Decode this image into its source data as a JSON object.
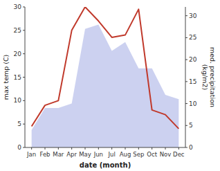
{
  "chart_data": {
    "type": "line",
    "categories": [
      "Jan",
      "Feb",
      "Mar",
      "Apr",
      "May",
      "Jun",
      "Jul",
      "Aug",
      "Sep",
      "Oct",
      "Nov",
      "Dec"
    ],
    "xlabel": "date (month)",
    "ylabel": "max temp (C)",
    "y2label": "med. precipitation\n(kg/m2)",
    "series": [
      {
        "type": "area",
        "axis": "y2",
        "color": "#b0b8e8",
        "values": [
          4,
          9,
          9,
          10,
          27,
          28,
          22,
          24,
          18,
          18,
          12,
          11
        ]
      },
      {
        "type": "line",
        "color": "#c0392b",
        "values": [
          4.5,
          9.0,
          10.0,
          25.0,
          30.0,
          27.0,
          23.5,
          24.0,
          29.5,
          8.0,
          7.0,
          4.0
        ]
      }
    ],
    "ylim": [
      0,
      30
    ],
    "yticks": [
      0,
      5,
      10,
      15,
      20,
      25,
      30
    ],
    "y2lim": [
      0,
      32
    ],
    "y2ticks": [
      0,
      5,
      10,
      15,
      20,
      25,
      30
    ],
    "grid": false
  }
}
